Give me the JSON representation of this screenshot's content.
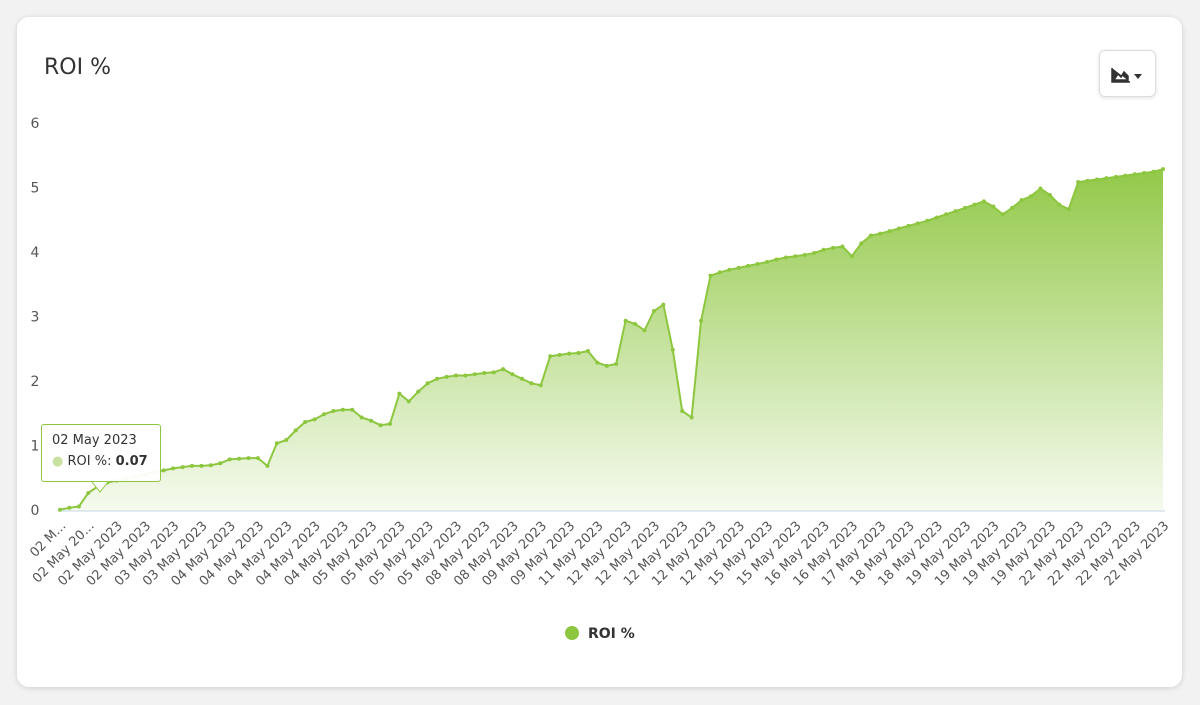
{
  "chart_data": {
    "type": "area",
    "title": "ROI %",
    "categories": [
      "02 M...",
      null,
      null,
      "02 May 20...",
      null,
      null,
      "02 May 2023",
      null,
      null,
      "02 May 2023",
      null,
      null,
      "03 May 2023",
      null,
      null,
      "03 May 2023",
      null,
      null,
      "04 May 2023",
      null,
      null,
      "04 May 2023",
      null,
      null,
      "04 May 2023",
      null,
      null,
      "04 May 2023",
      null,
      null,
      "04 May 2023",
      null,
      null,
      "05 May 2023",
      null,
      null,
      "05 May 2023",
      null,
      null,
      "05 May 2023",
      null,
      null,
      "05 May 2023",
      null,
      null,
      "08 May 2023",
      null,
      null,
      "08 May 2023",
      null,
      null,
      "09 May 2023",
      null,
      null,
      "09 May 2023",
      null,
      null,
      "11 May 2023",
      null,
      null,
      "12 May 2023",
      null,
      null,
      "12 May 2023",
      null,
      null,
      "12 May 2023",
      null,
      null,
      "12 May 2023",
      null,
      null,
      "12 May 2023",
      null,
      null,
      "15 May 2023",
      null,
      null,
      "15 May 2023",
      null,
      null,
      "16 May 2023",
      null,
      null,
      "16 May 2023",
      null,
      null,
      "17 May 2023",
      null,
      null,
      "18 May 2023",
      null,
      null,
      "18 May 2023",
      null,
      null,
      "19 May 2023",
      null,
      null,
      "19 May 2023",
      null,
      null,
      "19 May 2023",
      null,
      null,
      "19 May 2023",
      null,
      null,
      "22 May 2023",
      null,
      null,
      "22 May 2023",
      null,
      null,
      "22 May 2023",
      null,
      null,
      "22 May 2023"
    ],
    "series": [
      {
        "name": "ROI %",
        "color": "#8dc63f",
        "values": [
          0.02,
          0.05,
          0.07,
          0.28,
          0.38,
          0.44,
          0.47,
          0.5,
          0.53,
          0.57,
          0.6,
          0.63,
          0.66,
          0.68,
          0.7,
          0.7,
          0.71,
          0.74,
          0.8,
          0.81,
          0.82,
          0.82,
          0.7,
          1.05,
          1.1,
          1.25,
          1.38,
          1.42,
          1.5,
          1.55,
          1.57,
          1.57,
          1.45,
          1.4,
          1.33,
          1.35,
          1.82,
          1.7,
          1.85,
          1.98,
          2.05,
          2.08,
          2.1,
          2.1,
          2.12,
          2.14,
          2.15,
          2.2,
          2.12,
          2.05,
          1.98,
          1.95,
          2.4,
          2.42,
          2.44,
          2.45,
          2.48,
          2.3,
          2.25,
          2.28,
          2.95,
          2.9,
          2.8,
          3.1,
          3.2,
          2.5,
          1.55,
          1.45,
          2.95,
          3.65,
          3.7,
          3.74,
          3.77,
          3.8,
          3.83,
          3.86,
          3.9,
          3.93,
          3.95,
          3.97,
          4.0,
          4.05,
          4.08,
          4.1,
          3.95,
          4.15,
          4.27,
          4.3,
          4.34,
          4.38,
          4.42,
          4.46,
          4.5,
          4.55,
          4.6,
          4.65,
          4.7,
          4.75,
          4.8,
          4.72,
          4.6,
          4.7,
          4.82,
          4.88,
          5.0,
          4.9,
          4.75,
          4.68,
          5.1,
          5.12,
          5.14,
          5.16,
          5.18,
          5.2,
          5.22,
          5.24,
          5.26,
          5.3
        ]
      }
    ],
    "ylim": [
      0,
      6
    ],
    "yticks": [
      0,
      1,
      2,
      3,
      4,
      5,
      6
    ],
    "tooltip": {
      "category": "02 May 2023",
      "series": "ROI %",
      "value": 0.07
    }
  }
}
